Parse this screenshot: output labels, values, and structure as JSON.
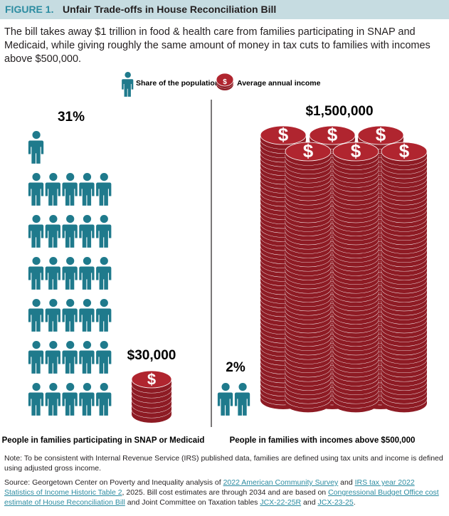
{
  "figure": {
    "label": "FIGURE 1.",
    "title": "Unfair Trade-offs in House Reconciliation Bill",
    "subtitle": "The bill takes away $1 trillion in food & health care from families participating in SNAP and Medicaid, while giving roughly the same amount of money in tax cuts to families with incomes above $500,000."
  },
  "legend": {
    "population_label": "Share of the population",
    "income_label": "Average annual income",
    "coin_symbol": "$"
  },
  "colors": {
    "header_bg": "#c6dce1",
    "accent_teal": "#2c8ca1",
    "person": "#1f7a8c",
    "coin": "#b0252f",
    "coin_dark": "#8e1b24",
    "divider": "#231f20"
  },
  "chart_data": {
    "type": "pictograph",
    "groups": [
      {
        "name": "People in families participating in SNAP or Medicaid",
        "population_share_label": "31%",
        "population_share": 31,
        "average_income_label": "$30,000",
        "average_income": 30000
      },
      {
        "name": "People in families with incomes above $500,000",
        "population_share_label": "2%",
        "population_share": 2,
        "average_income_label": "$1,500,000",
        "average_income": 1500000
      }
    ]
  },
  "notes": {
    "note": "Note: To be consistent with Internal Revenue Service (IRS) published data, families are defined using tax units and income is defined using adjusted gross income.",
    "source_1": "Source: Georgetown Center on Poverty and Inequality analysis of ",
    "source_link_1": "2022 American Community Survey",
    "source_2": " and ",
    "source_link_2": "IRS tax year 2022 Statistics of Income Historic Table 2",
    "source_3": ", 2025. Bill cost estimates are through 2034 and are based on ",
    "source_link_3": "Congressional Budget Office cost estimate of House Reconciliation Bill",
    "source_4": " and Joint Committee on Taxation tables ",
    "source_link_4": "JCX-22-25R",
    "source_5": " and ",
    "source_link_5": "JCX-23-25",
    "source_6": "."
  }
}
